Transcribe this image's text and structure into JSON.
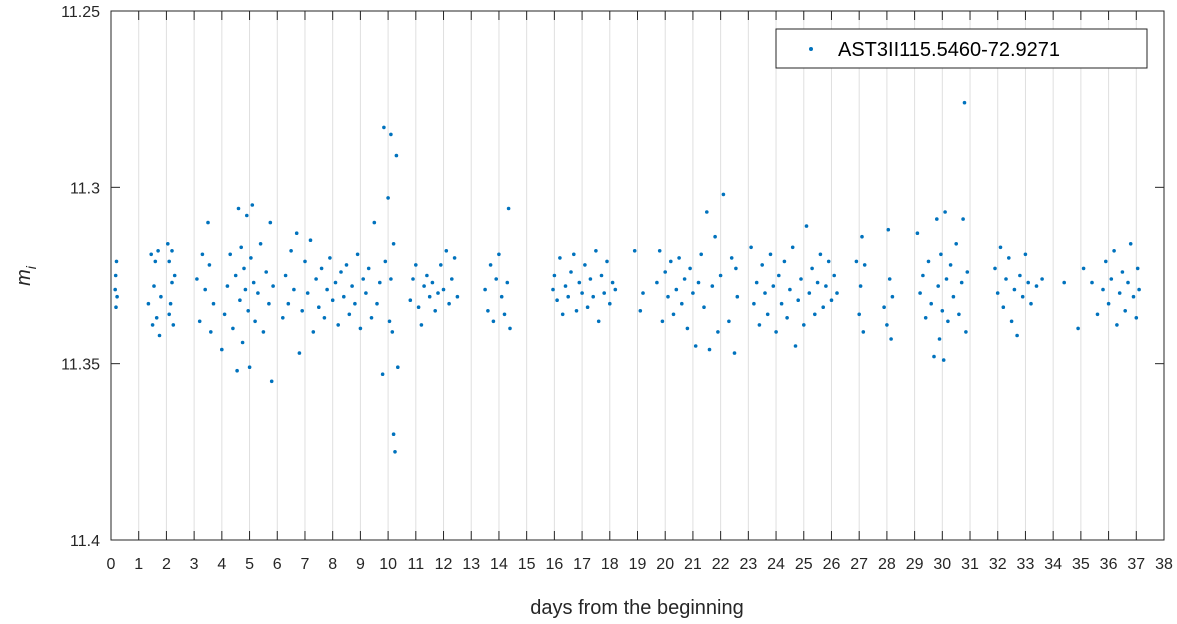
{
  "chart_data": {
    "type": "scatter",
    "title": "",
    "xlabel": "days from the beginning",
    "ylabel": "m",
    "ylabel_subscript": "i",
    "xlim": [
      0,
      38
    ],
    "ylim": [
      11.25,
      11.4
    ],
    "y_reversed": true,
    "x_ticks": [
      0,
      1,
      2,
      3,
      4,
      5,
      6,
      7,
      8,
      9,
      10,
      11,
      12,
      13,
      14,
      15,
      16,
      17,
      18,
      19,
      20,
      21,
      22,
      23,
      24,
      25,
      26,
      27,
      28,
      29,
      30,
      31,
      32,
      33,
      34,
      35,
      36,
      37,
      38
    ],
    "x_tick_labels": [
      "0",
      "1",
      "2",
      "3",
      "4",
      "5",
      "6",
      "7",
      "8",
      "9",
      "10",
      "11",
      "12",
      "13",
      "14",
      "15",
      "16",
      "17",
      "18",
      "19",
      "20",
      "21",
      "22",
      "23",
      "24",
      "25",
      "26",
      "27",
      "28",
      "29",
      "30",
      "31",
      "32",
      "33",
      "34",
      "35",
      "36",
      "37",
      "38"
    ],
    "y_ticks": [
      11.25,
      11.3,
      11.35,
      11.4
    ],
    "y_tick_labels": [
      "11.25",
      "11.3",
      "11.35",
      "11.4"
    ],
    "grid": {
      "x": true,
      "y": false
    },
    "legend_position": "top-right",
    "marker_color": "#0072BD",
    "series": [
      {
        "name": "AST3II115.5460-72.9271",
        "points": [
          [
            0.15,
            11.329
          ],
          [
            0.17,
            11.325
          ],
          [
            0.2,
            11.321
          ],
          [
            0.22,
            11.331
          ],
          [
            0.18,
            11.334
          ],
          [
            1.35,
            11.333
          ],
          [
            1.45,
            11.319
          ],
          [
            1.55,
            11.328
          ],
          [
            1.65,
            11.337
          ],
          [
            1.75,
            11.342
          ],
          [
            1.6,
            11.321
          ],
          [
            1.8,
            11.331
          ],
          [
            1.5,
            11.339
          ],
          [
            1.7,
            11.318
          ],
          [
            2.05,
            11.316
          ],
          [
            2.1,
            11.321
          ],
          [
            2.15,
            11.333
          ],
          [
            2.2,
            11.327
          ],
          [
            2.25,
            11.339
          ],
          [
            2.1,
            11.336
          ],
          [
            2.2,
            11.318
          ],
          [
            2.3,
            11.325
          ],
          [
            3.1,
            11.326
          ],
          [
            3.2,
            11.338
          ],
          [
            3.3,
            11.319
          ],
          [
            3.4,
            11.329
          ],
          [
            3.5,
            11.31
          ],
          [
            3.6,
            11.341
          ],
          [
            3.7,
            11.333
          ],
          [
            3.55,
            11.322
          ],
          [
            4.0,
            11.346
          ],
          [
            4.1,
            11.336
          ],
          [
            4.2,
            11.328
          ],
          [
            4.3,
            11.319
          ],
          [
            4.4,
            11.34
          ],
          [
            4.5,
            11.325
          ],
          [
            4.55,
            11.352
          ],
          [
            4.6,
            11.306
          ],
          [
            4.65,
            11.332
          ],
          [
            4.7,
            11.317
          ],
          [
            4.75,
            11.344
          ],
          [
            4.8,
            11.323
          ],
          [
            4.85,
            11.329
          ],
          [
            4.9,
            11.308
          ],
          [
            4.95,
            11.335
          ],
          [
            5.0,
            11.351
          ],
          [
            5.05,
            11.32
          ],
          [
            5.1,
            11.305
          ],
          [
            5.15,
            11.327
          ],
          [
            5.2,
            11.338
          ],
          [
            5.3,
            11.33
          ],
          [
            5.4,
            11.316
          ],
          [
            5.5,
            11.341
          ],
          [
            5.6,
            11.324
          ],
          [
            5.7,
            11.333
          ],
          [
            5.8,
            11.355
          ],
          [
            5.75,
            11.31
          ],
          [
            5.85,
            11.328
          ],
          [
            6.2,
            11.337
          ],
          [
            6.3,
            11.325
          ],
          [
            6.4,
            11.333
          ],
          [
            6.5,
            11.318
          ],
          [
            6.6,
            11.329
          ],
          [
            6.7,
            11.313
          ],
          [
            6.8,
            11.347
          ],
          [
            6.9,
            11.335
          ],
          [
            7.0,
            11.321
          ],
          [
            7.1,
            11.33
          ],
          [
            7.2,
            11.315
          ],
          [
            7.3,
            11.341
          ],
          [
            7.4,
            11.326
          ],
          [
            7.5,
            11.334
          ],
          [
            7.6,
            11.323
          ],
          [
            7.7,
            11.337
          ],
          [
            7.8,
            11.329
          ],
          [
            7.9,
            11.32
          ],
          [
            8.0,
            11.332
          ],
          [
            8.1,
            11.327
          ],
          [
            8.2,
            11.339
          ],
          [
            8.3,
            11.324
          ],
          [
            8.4,
            11.331
          ],
          [
            8.5,
            11.322
          ],
          [
            8.6,
            11.336
          ],
          [
            8.7,
            11.328
          ],
          [
            8.8,
            11.333
          ],
          [
            8.9,
            11.319
          ],
          [
            9.0,
            11.34
          ],
          [
            9.1,
            11.326
          ],
          [
            9.2,
            11.33
          ],
          [
            9.3,
            11.323
          ],
          [
            9.4,
            11.337
          ],
          [
            9.5,
            11.31
          ],
          [
            9.6,
            11.333
          ],
          [
            9.7,
            11.327
          ],
          [
            9.8,
            11.353
          ],
          [
            9.85,
            11.283
          ],
          [
            9.9,
            11.321
          ],
          [
            10.0,
            11.303
          ],
          [
            10.05,
            11.338
          ],
          [
            10.1,
            11.285
          ],
          [
            10.15,
            11.341
          ],
          [
            10.2,
            11.37
          ],
          [
            10.25,
            11.375
          ],
          [
            10.3,
            11.291
          ],
          [
            10.35,
            11.351
          ],
          [
            10.2,
            11.316
          ],
          [
            10.1,
            11.326
          ],
          [
            10.8,
            11.332
          ],
          [
            10.9,
            11.326
          ],
          [
            11.0,
            11.322
          ],
          [
            11.1,
            11.334
          ],
          [
            11.2,
            11.339
          ],
          [
            11.3,
            11.328
          ],
          [
            11.4,
            11.325
          ],
          [
            11.5,
            11.331
          ],
          [
            11.6,
            11.327
          ],
          [
            11.7,
            11.335
          ],
          [
            11.8,
            11.33
          ],
          [
            11.9,
            11.322
          ],
          [
            12.0,
            11.329
          ],
          [
            12.1,
            11.318
          ],
          [
            12.2,
            11.333
          ],
          [
            12.3,
            11.326
          ],
          [
            12.4,
            11.32
          ],
          [
            12.5,
            11.331
          ],
          [
            13.5,
            11.329
          ],
          [
            13.6,
            11.335
          ],
          [
            13.7,
            11.322
          ],
          [
            13.8,
            11.338
          ],
          [
            13.9,
            11.326
          ],
          [
            14.0,
            11.319
          ],
          [
            14.1,
            11.331
          ],
          [
            14.2,
            11.336
          ],
          [
            14.3,
            11.327
          ],
          [
            14.35,
            11.306
          ],
          [
            14.4,
            11.34
          ],
          [
            15.95,
            11.329
          ],
          [
            16.0,
            11.325
          ],
          [
            16.1,
            11.332
          ],
          [
            16.2,
            11.32
          ],
          [
            16.3,
            11.336
          ],
          [
            16.4,
            11.328
          ],
          [
            16.5,
            11.331
          ],
          [
            16.6,
            11.324
          ],
          [
            16.7,
            11.319
          ],
          [
            16.8,
            11.335
          ],
          [
            16.9,
            11.327
          ],
          [
            17.0,
            11.33
          ],
          [
            17.1,
            11.322
          ],
          [
            17.2,
            11.334
          ],
          [
            17.3,
            11.326
          ],
          [
            17.4,
            11.331
          ],
          [
            17.5,
            11.318
          ],
          [
            17.6,
            11.338
          ],
          [
            17.7,
            11.325
          ],
          [
            17.8,
            11.33
          ],
          [
            17.9,
            11.321
          ],
          [
            18.0,
            11.333
          ],
          [
            18.1,
            11.327
          ],
          [
            18.2,
            11.329
          ],
          [
            18.9,
            11.318
          ],
          [
            19.1,
            11.335
          ],
          [
            19.2,
            11.33
          ],
          [
            19.7,
            11.327
          ],
          [
            19.8,
            11.318
          ],
          [
            19.9,
            11.338
          ],
          [
            20.0,
            11.324
          ],
          [
            20.1,
            11.331
          ],
          [
            20.2,
            11.321
          ],
          [
            20.3,
            11.336
          ],
          [
            20.4,
            11.329
          ],
          [
            20.5,
            11.32
          ],
          [
            20.6,
            11.333
          ],
          [
            20.7,
            11.326
          ],
          [
            20.8,
            11.34
          ],
          [
            20.9,
            11.323
          ],
          [
            21.0,
            11.33
          ],
          [
            21.1,
            11.345
          ],
          [
            21.2,
            11.327
          ],
          [
            21.3,
            11.319
          ],
          [
            21.4,
            11.334
          ],
          [
            21.5,
            11.307
          ],
          [
            21.6,
            11.346
          ],
          [
            21.7,
            11.328
          ],
          [
            21.8,
            11.314
          ],
          [
            21.9,
            11.341
          ],
          [
            22.0,
            11.325
          ],
          [
            22.1,
            11.302
          ],
          [
            22.3,
            11.338
          ],
          [
            22.4,
            11.32
          ],
          [
            22.5,
            11.347
          ],
          [
            22.6,
            11.331
          ],
          [
            22.55,
            11.323
          ],
          [
            23.1,
            11.317
          ],
          [
            23.2,
            11.333
          ],
          [
            23.3,
            11.327
          ],
          [
            23.4,
            11.339
          ],
          [
            23.5,
            11.322
          ],
          [
            23.6,
            11.33
          ],
          [
            23.7,
            11.336
          ],
          [
            23.8,
            11.319
          ],
          [
            23.9,
            11.328
          ],
          [
            24.0,
            11.341
          ],
          [
            24.1,
            11.325
          ],
          [
            24.2,
            11.333
          ],
          [
            24.3,
            11.321
          ],
          [
            24.4,
            11.337
          ],
          [
            24.5,
            11.329
          ],
          [
            24.6,
            11.317
          ],
          [
            24.7,
            11.345
          ],
          [
            24.8,
            11.332
          ],
          [
            24.9,
            11.326
          ],
          [
            25.0,
            11.339
          ],
          [
            25.1,
            11.311
          ],
          [
            25.2,
            11.33
          ],
          [
            25.3,
            11.323
          ],
          [
            25.4,
            11.336
          ],
          [
            25.5,
            11.327
          ],
          [
            25.6,
            11.319
          ],
          [
            25.7,
            11.334
          ],
          [
            25.8,
            11.328
          ],
          [
            25.9,
            11.321
          ],
          [
            26.0,
            11.332
          ],
          [
            26.1,
            11.325
          ],
          [
            26.2,
            11.33
          ],
          [
            26.9,
            11.321
          ],
          [
            27.0,
            11.336
          ],
          [
            27.05,
            11.328
          ],
          [
            27.1,
            11.314
          ],
          [
            27.15,
            11.341
          ],
          [
            27.2,
            11.322
          ],
          [
            27.9,
            11.334
          ],
          [
            28.0,
            11.339
          ],
          [
            28.05,
            11.312
          ],
          [
            28.1,
            11.326
          ],
          [
            28.15,
            11.343
          ],
          [
            28.2,
            11.331
          ],
          [
            29.1,
            11.313
          ],
          [
            29.2,
            11.33
          ],
          [
            29.3,
            11.325
          ],
          [
            29.4,
            11.337
          ],
          [
            29.5,
            11.321
          ],
          [
            29.6,
            11.333
          ],
          [
            29.7,
            11.348
          ],
          [
            29.8,
            11.309
          ],
          [
            29.85,
            11.328
          ],
          [
            29.9,
            11.343
          ],
          [
            29.95,
            11.319
          ],
          [
            30.0,
            11.335
          ],
          [
            30.05,
            11.349
          ],
          [
            30.1,
            11.307
          ],
          [
            30.15,
            11.326
          ],
          [
            30.2,
            11.338
          ],
          [
            30.3,
            11.322
          ],
          [
            30.4,
            11.331
          ],
          [
            30.5,
            11.316
          ],
          [
            30.6,
            11.336
          ],
          [
            30.7,
            11.327
          ],
          [
            30.75,
            11.309
          ],
          [
            30.8,
            11.276
          ],
          [
            30.85,
            11.341
          ],
          [
            30.9,
            11.324
          ],
          [
            31.9,
            11.323
          ],
          [
            32.0,
            11.33
          ],
          [
            32.1,
            11.317
          ],
          [
            32.2,
            11.334
          ],
          [
            32.3,
            11.326
          ],
          [
            32.4,
            11.32
          ],
          [
            32.5,
            11.338
          ],
          [
            32.6,
            11.329
          ],
          [
            32.7,
            11.342
          ],
          [
            32.8,
            11.325
          ],
          [
            32.9,
            11.331
          ],
          [
            33.0,
            11.319
          ],
          [
            33.1,
            11.327
          ],
          [
            33.2,
            11.333
          ],
          [
            33.4,
            11.328
          ],
          [
            33.6,
            11.326
          ],
          [
            34.4,
            11.327
          ],
          [
            34.9,
            11.34
          ],
          [
            35.1,
            11.323
          ],
          [
            35.4,
            11.327
          ],
          [
            35.6,
            11.336
          ],
          [
            35.8,
            11.329
          ],
          [
            35.9,
            11.321
          ],
          [
            36.0,
            11.333
          ],
          [
            36.1,
            11.326
          ],
          [
            36.2,
            11.318
          ],
          [
            36.3,
            11.339
          ],
          [
            36.4,
            11.33
          ],
          [
            36.5,
            11.324
          ],
          [
            36.6,
            11.335
          ],
          [
            36.7,
            11.327
          ],
          [
            36.8,
            11.316
          ],
          [
            36.9,
            11.331
          ],
          [
            37.0,
            11.337
          ],
          [
            37.05,
            11.323
          ],
          [
            37.1,
            11.329
          ]
        ]
      }
    ]
  }
}
